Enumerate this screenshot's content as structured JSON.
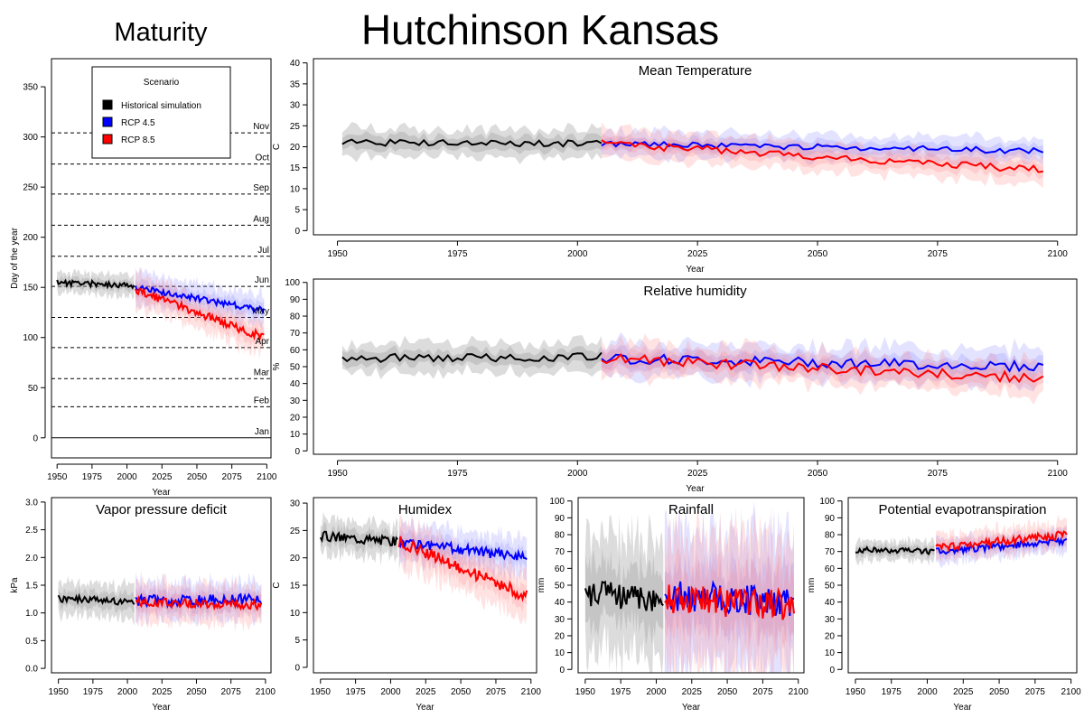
{
  "page": {
    "title": "Hutchinson Kansas",
    "left_title": "Maturity"
  },
  "colors": {
    "historical": "#000000",
    "rcp45": "#0000ff",
    "rcp85": "#ff0000",
    "historical_band": "#9a9a9a",
    "rcp45_band": "#8080ff",
    "rcp85_band": "#ff8080"
  },
  "chart_data": [
    {
      "id": "maturity",
      "type": "line",
      "title": "",
      "xlabel": "Year",
      "ylabel": "Day of the year",
      "xlim": [
        1946,
        2103
      ],
      "ylim": [
        -20,
        378
      ],
      "xticks": [
        1950,
        1975,
        2000,
        2025,
        2050,
        2075,
        2100
      ],
      "yticks": [
        0,
        50,
        100,
        150,
        200,
        250,
        300,
        350
      ],
      "legend": {
        "title": "Scenario",
        "placement": "top-left",
        "entries": [
          "Historical simulation",
          "RCP 4.5",
          "RCP 8.5"
        ]
      },
      "month_lines": [
        {
          "label": "Jan",
          "day": 0
        },
        {
          "label": "Feb",
          "day": 31
        },
        {
          "label": "Mar",
          "day": 59
        },
        {
          "label": "Apr",
          "day": 90
        },
        {
          "label": "May",
          "day": 120
        },
        {
          "label": "Jun",
          "day": 151
        },
        {
          "label": "Jul",
          "day": 181
        },
        {
          "label": "Aug",
          "day": 212
        },
        {
          "label": "Sep",
          "day": 243
        },
        {
          "label": "Oct",
          "day": 273
        },
        {
          "label": "Nov",
          "day": 304
        }
      ],
      "series": [
        {
          "key": "historical",
          "name": "Historical simulation",
          "x_start": 1950,
          "x_end": 2005,
          "y_start": 155,
          "y_end": 152,
          "noise": 3,
          "band": 12,
          "seed": 11
        },
        {
          "key": "rcp45",
          "name": "RCP 4.5",
          "x_start": 2006,
          "x_end": 2098,
          "y_start": 150,
          "y_end": 127,
          "noise": 3,
          "band": 18,
          "seed": 12
        },
        {
          "key": "rcp85",
          "name": "RCP 8.5",
          "x_start": 2006,
          "x_end": 2098,
          "y_start": 148,
          "y_end": 100,
          "noise": 4,
          "band": 20,
          "seed": 13
        }
      ]
    },
    {
      "id": "mean-temperature",
      "type": "line",
      "title": "Mean Temperature",
      "xlabel": "Year",
      "ylabel": "C",
      "xlim": [
        1945,
        2104
      ],
      "ylim": [
        -1,
        41
      ],
      "xticks": [
        1950,
        1975,
        2000,
        2025,
        2050,
        2075,
        2100
      ],
      "yticks": [
        0,
        5,
        10,
        15,
        20,
        25,
        30,
        35,
        40
      ],
      "series": [
        {
          "key": "historical",
          "name": "Historical simulation",
          "x_start": 1951,
          "x_end": 2005,
          "y_start": 21,
          "y_end": 20.8,
          "noise": 0.8,
          "band": 4,
          "seed": 21
        },
        {
          "key": "rcp45",
          "name": "RCP 4.5",
          "x_start": 2005,
          "x_end": 2097,
          "y_start": 20.8,
          "y_end": 19,
          "noise": 0.7,
          "band": 3.5,
          "seed": 22
        },
        {
          "key": "rcp85",
          "name": "RCP 8.5",
          "x_start": 2005,
          "x_end": 2097,
          "y_start": 20.8,
          "y_end": 14.5,
          "noise": 0.9,
          "band": 4,
          "seed": 23
        }
      ]
    },
    {
      "id": "relative-humidity",
      "type": "line",
      "title": "Relative humidity",
      "xlabel": "Year",
      "ylabel": "%",
      "xlim": [
        1945,
        2104
      ],
      "ylim": [
        -2,
        102
      ],
      "xticks": [
        1950,
        1975,
        2000,
        2025,
        2050,
        2075,
        2100
      ],
      "yticks": [
        0,
        10,
        20,
        30,
        40,
        50,
        60,
        70,
        80,
        90,
        100
      ],
      "series": [
        {
          "key": "historical",
          "name": "Historical simulation",
          "x_start": 1951,
          "x_end": 2005,
          "y_start": 55,
          "y_end": 56,
          "noise": 2.5,
          "band": 10,
          "seed": 31
        },
        {
          "key": "rcp45",
          "name": "RCP 4.5",
          "x_start": 2005,
          "x_end": 2097,
          "y_start": 55,
          "y_end": 50,
          "noise": 3,
          "band": 12,
          "seed": 32
        },
        {
          "key": "rcp85",
          "name": "RCP 8.5",
          "x_start": 2005,
          "x_end": 2097,
          "y_start": 55,
          "y_end": 43,
          "noise": 3,
          "band": 12,
          "seed": 33
        }
      ]
    },
    {
      "id": "vapor-pressure-deficit",
      "type": "line",
      "title": "Vapor pressure deficit",
      "xlabel": "Year",
      "ylabel": "kPa",
      "xlim": [
        1945,
        2104
      ],
      "ylim": [
        -0.08,
        3.08
      ],
      "xticks": [
        1950,
        1975,
        2000,
        2025,
        2050,
        2075,
        2100
      ],
      "yticks": [
        0.0,
        0.5,
        1.0,
        1.5,
        2.0,
        2.5,
        3.0
      ],
      "ytick_format": 1,
      "series": [
        {
          "key": "historical",
          "name": "Historical simulation",
          "x_start": 1950,
          "x_end": 2005,
          "y_start": 1.25,
          "y_end": 1.2,
          "noise": 0.07,
          "band": 0.35,
          "seed": 41
        },
        {
          "key": "rcp45",
          "name": "RCP 4.5",
          "x_start": 2006,
          "x_end": 2097,
          "y_start": 1.22,
          "y_end": 1.25,
          "noise": 0.1,
          "band": 0.4,
          "seed": 42
        },
        {
          "key": "rcp85",
          "name": "RCP 8.5",
          "x_start": 2006,
          "x_end": 2097,
          "y_start": 1.2,
          "y_end": 1.15,
          "noise": 0.08,
          "band": 0.4,
          "seed": 43
        }
      ]
    },
    {
      "id": "humidex",
      "type": "line",
      "title": "Humidex",
      "xlabel": "Year",
      "ylabel": "C",
      "xlim": [
        1945,
        2104
      ],
      "ylim": [
        -1,
        31
      ],
      "xticks": [
        1950,
        1975,
        2000,
        2025,
        2050,
        2075,
        2100
      ],
      "yticks": [
        0,
        5,
        10,
        15,
        20,
        25,
        30
      ],
      "series": [
        {
          "key": "historical",
          "name": "Historical simulation",
          "x_start": 1950,
          "x_end": 2005,
          "y_start": 24,
          "y_end": 23,
          "noise": 0.9,
          "band": 3.5,
          "seed": 51
        },
        {
          "key": "rcp45",
          "name": "RCP 4.5",
          "x_start": 2006,
          "x_end": 2097,
          "y_start": 23,
          "y_end": 20,
          "noise": 0.9,
          "band": 4,
          "seed": 52
        },
        {
          "key": "rcp85",
          "name": "RCP 8.5",
          "x_start": 2006,
          "x_end": 2097,
          "y_start": 23,
          "y_end": 13,
          "noise": 1.1,
          "band": 5,
          "seed": 53
        }
      ]
    },
    {
      "id": "rainfall",
      "type": "line",
      "title": "Rainfall",
      "xlabel": "Year",
      "ylabel": "mm",
      "xlim": [
        1945,
        2104
      ],
      "ylim": [
        -2,
        102
      ],
      "xticks": [
        1950,
        1975,
        2000,
        2025,
        2050,
        2075,
        2100
      ],
      "yticks": [
        0,
        10,
        20,
        30,
        40,
        50,
        60,
        70,
        80,
        90,
        100
      ],
      "series": [
        {
          "key": "historical",
          "name": "Historical simulation",
          "x_start": 1950,
          "x_end": 2005,
          "y_start": 45,
          "y_end": 42,
          "noise": 8,
          "band": 40,
          "seed": 61
        },
        {
          "key": "rcp45",
          "name": "RCP 4.5",
          "x_start": 2006,
          "x_end": 2097,
          "y_start": 44,
          "y_end": 40,
          "noise": 9,
          "band": 45,
          "seed": 62
        },
        {
          "key": "rcp85",
          "name": "RCP 8.5",
          "x_start": 2006,
          "x_end": 2097,
          "y_start": 42,
          "y_end": 38,
          "noise": 9,
          "band": 45,
          "seed": 63
        }
      ]
    },
    {
      "id": "potential-evapotranspiration",
      "type": "line",
      "title": "Potential evapotranspiration",
      "xlabel": "Year",
      "ylabel": "mm",
      "xlim": [
        1945,
        2104
      ],
      "ylim": [
        -2,
        102
      ],
      "xticks": [
        1950,
        1975,
        2000,
        2025,
        2050,
        2075,
        2100
      ],
      "yticks": [
        0,
        10,
        20,
        30,
        40,
        50,
        60,
        70,
        80,
        90,
        100
      ],
      "series": [
        {
          "key": "historical",
          "name": "Historical simulation",
          "x_start": 1950,
          "x_end": 2005,
          "y_start": 71,
          "y_end": 70,
          "noise": 1.6,
          "band": 7,
          "seed": 71
        },
        {
          "key": "rcp45",
          "name": "RCP 4.5",
          "x_start": 2006,
          "x_end": 2097,
          "y_start": 70,
          "y_end": 76,
          "noise": 2,
          "band": 8,
          "seed": 72
        },
        {
          "key": "rcp85",
          "name": "RCP 8.5",
          "x_start": 2006,
          "x_end": 2097,
          "y_start": 72,
          "y_end": 80,
          "noise": 2.5,
          "band": 9,
          "seed": 73
        }
      ]
    }
  ]
}
